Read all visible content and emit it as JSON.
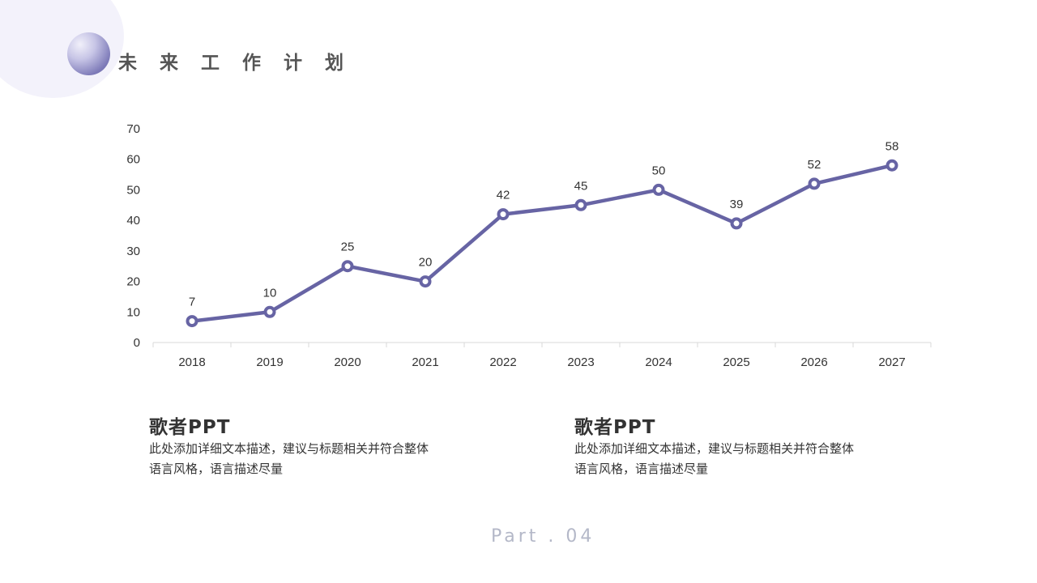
{
  "header": {
    "title": "未 来 工 作 计 划"
  },
  "chart_data": {
    "type": "line",
    "categories": [
      "2018",
      "2019",
      "2020",
      "2021",
      "2022",
      "2023",
      "2024",
      "2025",
      "2026",
      "2027"
    ],
    "values": [
      7,
      10,
      25,
      20,
      42,
      45,
      50,
      39,
      52,
      58
    ],
    "ylim": [
      0,
      70
    ],
    "yticks": [
      0,
      10,
      20,
      30,
      40,
      50,
      60,
      70
    ],
    "data_labels": true,
    "grid": false,
    "line_color": "#6764a4"
  },
  "blocks": [
    {
      "title": "歌者PPT",
      "text_line1": "此处添加详细文本描述，建议与标题相关并符合整体",
      "text_line2": "语言风格，语言描述尽量"
    },
    {
      "title": "歌者PPT",
      "text_line1": "此处添加详细文本描述，建议与标题相关并符合整体",
      "text_line2": "语言风格，语言描述尽量"
    }
  ],
  "footer": {
    "part_label": "Part . 04"
  }
}
